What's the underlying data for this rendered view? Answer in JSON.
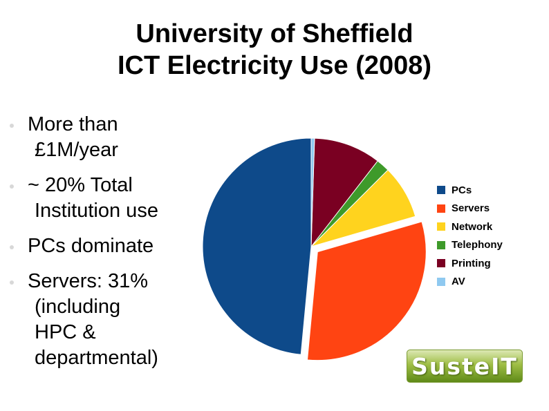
{
  "title": {
    "line1": "University of Sheffield",
    "line2": "ICT Electricity Use (2008)"
  },
  "bullets": [
    {
      "line1": "More than",
      "line2": "£1M/year"
    },
    {
      "line1": "~ 20% Total",
      "line2": "Institution use"
    },
    {
      "line1": "PCs dominate"
    },
    {
      "line1": "Servers: 31%",
      "line2": "(including",
      "line3": "HPC &",
      "line4": "departmental)"
    }
  ],
  "logo": {
    "text": "SusteIT",
    "colors": [
      "#dce8b4",
      "#9fbe45",
      "#5f8a18"
    ]
  },
  "chart_data": {
    "type": "pie",
    "labels": [
      "PCs",
      "Servers",
      "Network",
      "Telephony",
      "Printing",
      "AV"
    ],
    "values": [
      48.5,
      31,
      8,
      2,
      10,
      0.5
    ],
    "units": "percent (estimated)",
    "colors": [
      "#0e4a8a",
      "#ff4412",
      "#ffd31e",
      "#3e9a2a",
      "#7a0022",
      "#8fc9f0"
    ],
    "exploded": [
      "Servers"
    ],
    "legend_position": "right",
    "title": ""
  }
}
